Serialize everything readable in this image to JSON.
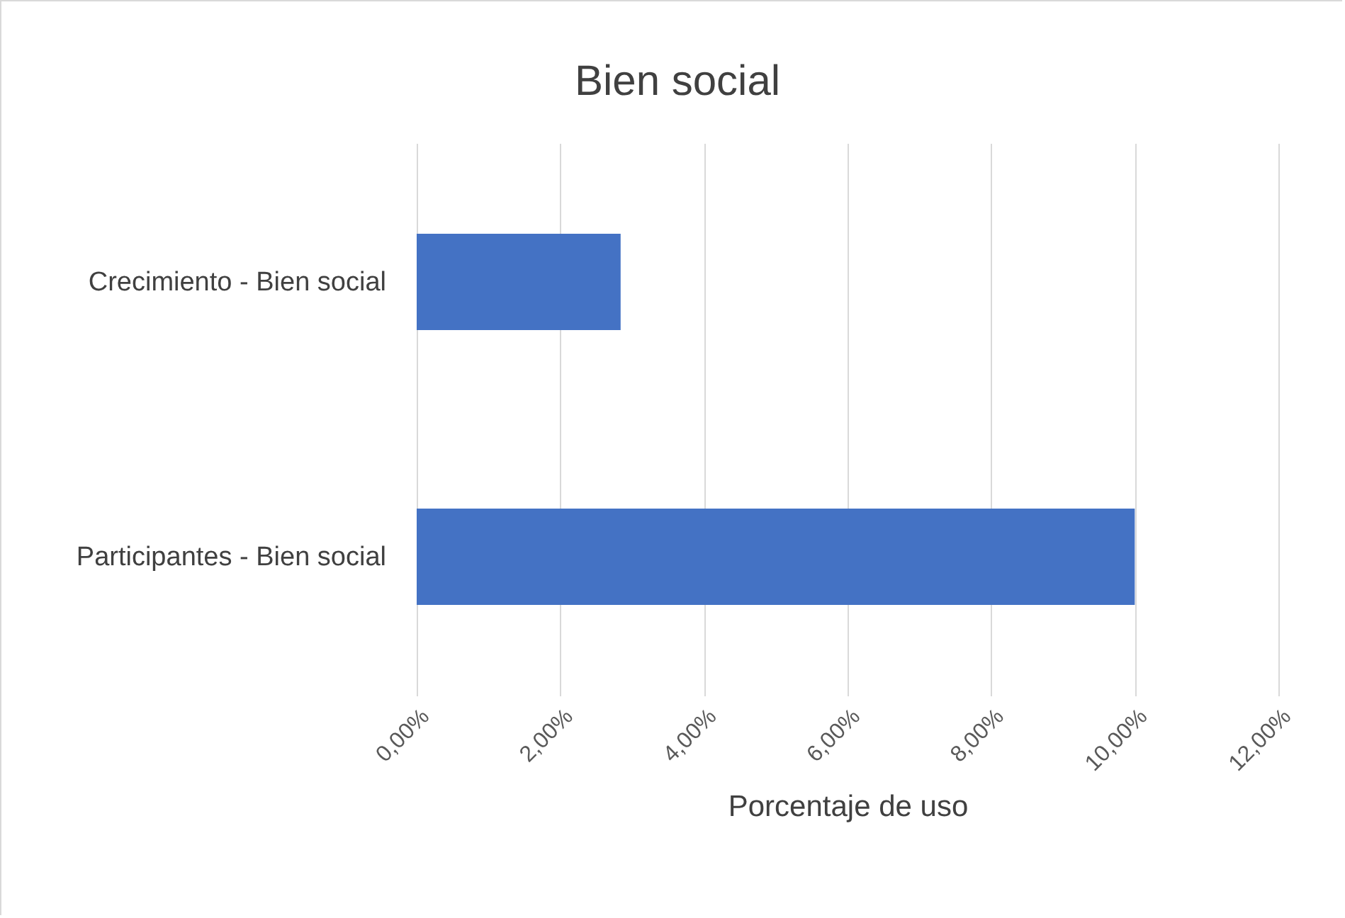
{
  "chart_data": {
    "type": "bar",
    "title": "Bien social",
    "xlabel": "Porcentaje de uso",
    "orientation": "horizontal",
    "categories": [
      "Crecimiento  - Bien social",
      "Participantes - Bien social"
    ],
    "values": [
      2.84,
      10
    ],
    "color": "#4472c4",
    "xlim": [
      0,
      12
    ],
    "xticks": [
      {
        "value": 0,
        "label": "0,00%"
      },
      {
        "value": 2,
        "label": "2,00%"
      },
      {
        "value": 4,
        "label": "4,00%"
      },
      {
        "value": 6,
        "label": "6,00%"
      },
      {
        "value": 8,
        "label": "8,00%"
      },
      {
        "value": 10,
        "label": "10,00%"
      },
      {
        "value": 12,
        "label": "12,00%"
      }
    ],
    "grid": "x"
  }
}
